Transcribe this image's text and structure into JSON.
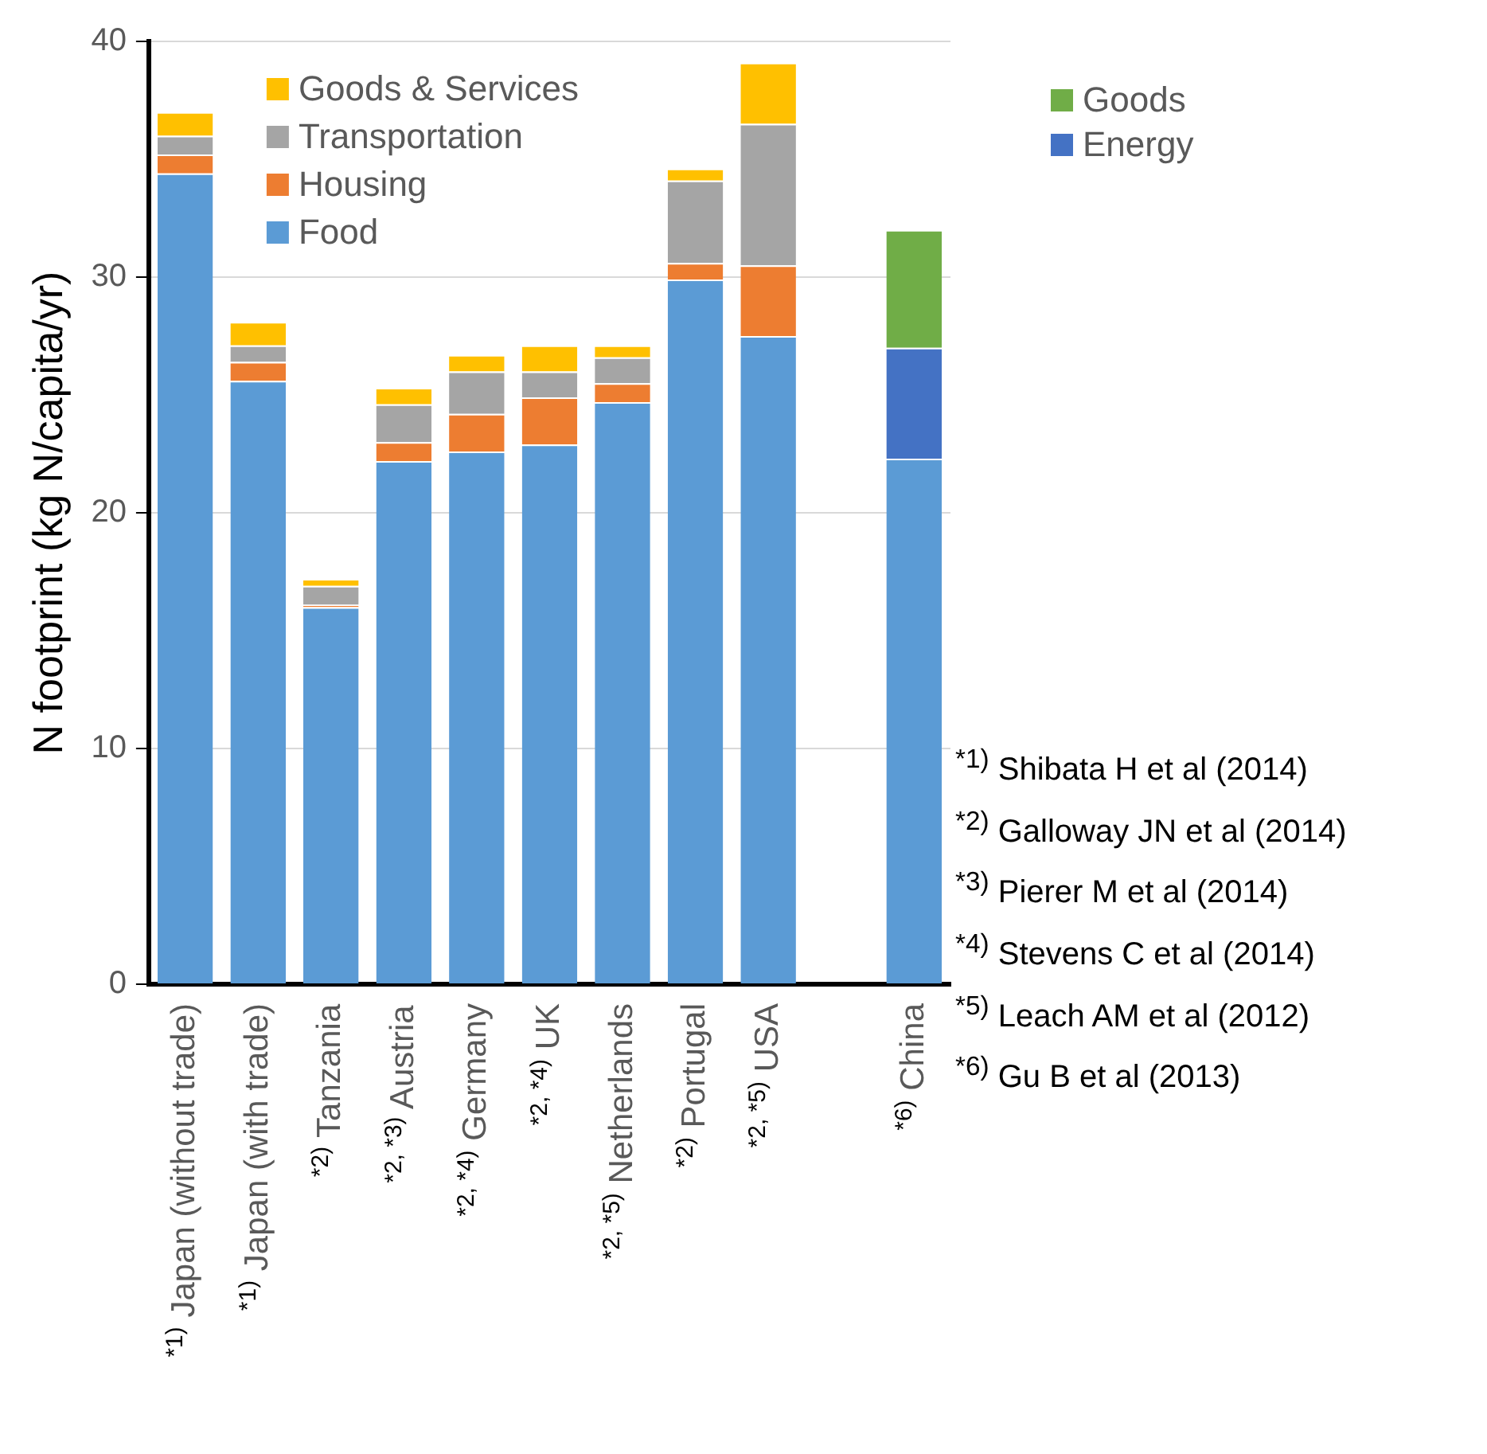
{
  "chart_data": {
    "type": "bar",
    "stacked": true,
    "ylabel": "N footprint (kg N/capita/yr)",
    "categories": [
      "$^{*1)}$ Japan (without trade)",
      "$^{*1)}$ Japan (with trade)",
      "$^{*2)}$ Tanzania",
      "$^{*2, *3)}$ Austria",
      "$^{*2, *4)}$ Germany",
      "$^{*2, *4)}$ UK",
      "$^{*2, *5)}$ Netherlands",
      "$^{*2)}$ Portugal",
      "$^{*2, *5)}$ USA",
      null,
      "$^{*6)}$ China"
    ],
    "series": [
      {
        "name": "Food",
        "color": "#5b9bd5",
        "values": [
          34.4,
          25.6,
          16.0,
          22.2,
          22.6,
          22.9,
          24.7,
          29.9,
          27.5,
          null,
          22.3
        ]
      },
      {
        "name": "Housing",
        "color": "#ed7d31",
        "values": [
          0.8,
          0.8,
          0.1,
          0.8,
          1.6,
          2.0,
          0.8,
          0.7,
          3.0,
          null,
          null
        ]
      },
      {
        "name": "Transportation",
        "color": "#a5a5a5",
        "values": [
          0.8,
          0.7,
          0.8,
          1.6,
          1.8,
          1.1,
          1.1,
          3.5,
          6.0,
          null,
          null
        ]
      },
      {
        "name": "Goods & Services",
        "color": "#ffc000",
        "values": [
          1.0,
          1.0,
          0.3,
          0.7,
          0.7,
          1.1,
          0.5,
          0.5,
          2.6,
          null,
          null
        ]
      },
      {
        "name": "Energy",
        "color": "#4472c4",
        "values": [
          null,
          null,
          null,
          null,
          null,
          null,
          null,
          null,
          null,
          null,
          4.7
        ]
      },
      {
        "name": "Goods",
        "color": "#70ad47",
        "values": [
          null,
          null,
          null,
          null,
          null,
          null,
          null,
          null,
          null,
          null,
          5.0
        ]
      }
    ],
    "ylim": [
      0,
      40
    ],
    "yticks": [
      0,
      10,
      20,
      30,
      40
    ],
    "grid": "y",
    "legend": "top",
    "annotations": [
      "$^{*1)}$ Shibata H et al (2014)",
      "$^{*2)}$ Galloway JN et al (2014)",
      "$^{*3)}$ Pierer M et al (2014)",
      "$^{*4)}$ Stevens C et al (2014)",
      "$^{*5)}$ Leach AM et al (2012)",
      "$^{*6)}$ Gu B et al (2013)"
    ]
  }
}
